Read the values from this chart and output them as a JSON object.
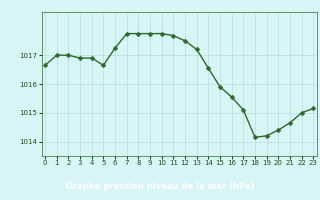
{
  "x": [
    0,
    1,
    2,
    3,
    4,
    5,
    6,
    7,
    8,
    9,
    10,
    11,
    12,
    13,
    14,
    15,
    16,
    17,
    18,
    19,
    20,
    21,
    22,
    23
  ],
  "y": [
    1016.65,
    1017.0,
    1017.0,
    1016.9,
    1016.9,
    1016.65,
    1017.25,
    1017.75,
    1017.75,
    1017.75,
    1017.75,
    1017.68,
    1017.5,
    1017.2,
    1016.55,
    1015.9,
    1015.55,
    1015.1,
    1014.15,
    1014.2,
    1014.4,
    1014.65,
    1015.0,
    1015.15
  ],
  "line_color": "#2d6a2d",
  "marker": "D",
  "marker_size": 2.5,
  "background_color": "#d8f5f5",
  "plot_bg_color": "#d8f5f5",
  "grid_color": "#b8dede",
  "xlabel": "Graphe pression niveau de la mer (hPa)",
  "xlabel_color": "#1a4d1a",
  "tick_label_color": "#1a4d1a",
  "axis_color": "#2d6a2d",
  "ylim": [
    1013.5,
    1018.5
  ],
  "yticks": [
    1014,
    1015,
    1016,
    1017
  ],
  "xticks": [
    0,
    1,
    2,
    3,
    4,
    5,
    6,
    7,
    8,
    9,
    10,
    11,
    12,
    13,
    14,
    15,
    16,
    17,
    18,
    19,
    20,
    21,
    22,
    23
  ],
  "xlim": [
    -0.3,
    23.3
  ],
  "line_width": 1.0,
  "bottom_bar_color": "#2d6a2d",
  "bottom_bar_height": 0.22,
  "tick_fontsize": 5.0,
  "xlabel_fontsize": 6.0
}
